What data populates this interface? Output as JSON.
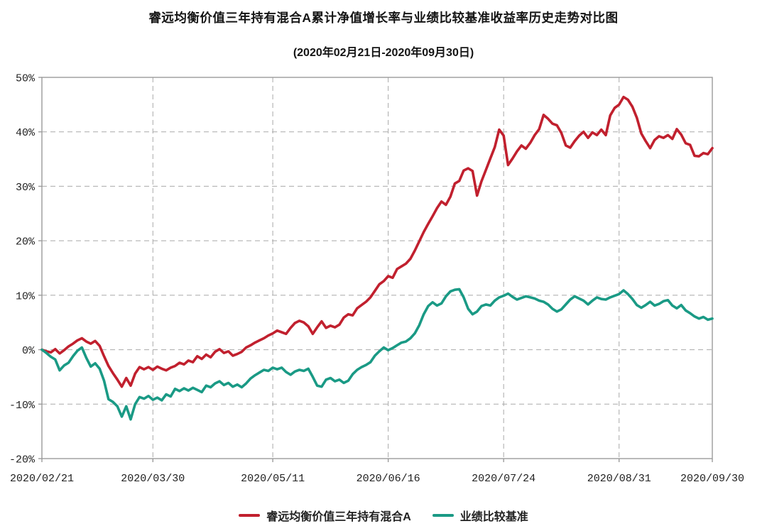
{
  "header": {
    "title": "睿远均衡价值三年持有混合A累计净值增长率与业绩比较基准收益率历史走势对比图",
    "subtitle": "(2020年02月21日-2020年09月30日)"
  },
  "chart_data": {
    "type": "line",
    "title": "睿远均衡价值三年持有混合A累计净值增长率与业绩比较基准收益率历史走势对比图",
    "subtitle": "(2020年02月21日-2020年09月30日)",
    "grid": "dashed",
    "legend_position": "bottom",
    "x_axis": {
      "tick_labels": [
        "2020/02/21",
        "2020/03/30",
        "2020/05/11",
        "2020/06/16",
        "2020/07/24",
        "2020/08/31",
        "2020/09/30"
      ],
      "tick_indices": [
        0,
        25,
        52,
        78,
        104,
        130,
        151
      ],
      "n_points": 152
    },
    "y_axis": {
      "unit": "%",
      "min": -20,
      "max": 50,
      "tick_values": [
        50,
        40,
        30,
        20,
        10,
        0,
        -10,
        -20
      ],
      "tick_labels": [
        "50%",
        "40%",
        "30%",
        "20%",
        "10%",
        "0%",
        "-10%",
        "-20%"
      ]
    },
    "series": [
      {
        "name": "睿远均衡价值三年持有混合A",
        "color": "#c1202e",
        "values": [
          0.0,
          -0.3,
          -0.5,
          0.1,
          -0.7,
          -0.1,
          0.6,
          1.1,
          1.7,
          2.1,
          1.5,
          1.1,
          1.6,
          0.7,
          -1.2,
          -3.0,
          -4.3,
          -5.5,
          -6.8,
          -5.2,
          -6.6,
          -4.4,
          -3.2,
          -3.6,
          -3.2,
          -3.7,
          -3.1,
          -3.5,
          -3.8,
          -3.3,
          -3.0,
          -2.4,
          -2.7,
          -2.0,
          -2.3,
          -1.2,
          -1.7,
          -0.9,
          -1.4,
          -0.4,
          0.1,
          -0.6,
          -0.3,
          -1.1,
          -0.8,
          -0.4,
          0.4,
          0.8,
          1.3,
          1.7,
          2.1,
          2.6,
          3.0,
          3.5,
          3.2,
          2.9,
          4.0,
          4.9,
          5.3,
          5.0,
          4.3,
          2.9,
          4.1,
          5.2,
          4.0,
          4.4,
          4.1,
          4.6,
          5.9,
          6.5,
          6.3,
          7.6,
          8.2,
          8.8,
          9.6,
          10.8,
          12.0,
          12.6,
          13.5,
          13.2,
          14.8,
          15.3,
          15.8,
          16.7,
          18.2,
          19.9,
          21.6,
          23.1,
          24.5,
          26.0,
          27.2,
          26.6,
          28.1,
          30.5,
          31.0,
          32.9,
          33.3,
          32.8,
          28.3,
          30.9,
          33.0,
          35.1,
          37.2,
          40.4,
          39.3,
          33.9,
          35.1,
          36.4,
          37.5,
          36.9,
          38.0,
          39.4,
          40.5,
          43.1,
          42.4,
          41.5,
          41.2,
          39.8,
          37.5,
          37.1,
          38.3,
          39.3,
          40.0,
          38.9,
          39.9,
          39.4,
          40.4,
          39.4,
          43.0,
          44.4,
          45.0,
          46.4,
          45.9,
          44.6,
          42.6,
          39.7,
          38.3,
          37.0,
          38.5,
          39.2,
          38.9,
          39.4,
          38.7,
          40.5,
          39.5,
          37.9,
          37.6,
          35.6,
          35.5,
          36.1,
          35.9,
          37.0
        ]
      },
      {
        "name": "业绩比较基准",
        "color": "#1a9a85",
        "values": [
          0.0,
          -0.6,
          -1.3,
          -1.8,
          -3.8,
          -2.9,
          -2.4,
          -1.2,
          -0.2,
          0.4,
          -1.5,
          -3.1,
          -2.5,
          -3.5,
          -5.7,
          -9.1,
          -9.6,
          -10.4,
          -12.3,
          -10.4,
          -12.8,
          -10.0,
          -8.7,
          -9.0,
          -8.5,
          -9.2,
          -8.8,
          -9.3,
          -8.2,
          -8.6,
          -7.2,
          -7.6,
          -7.1,
          -7.5,
          -7.0,
          -7.4,
          -7.8,
          -6.6,
          -6.9,
          -6.2,
          -5.8,
          -6.5,
          -6.1,
          -6.8,
          -6.4,
          -6.9,
          -6.2,
          -5.3,
          -4.7,
          -4.2,
          -3.7,
          -3.9,
          -3.3,
          -3.6,
          -3.3,
          -4.1,
          -4.6,
          -4.0,
          -3.7,
          -3.9,
          -3.5,
          -5.0,
          -6.6,
          -6.8,
          -5.5,
          -5.2,
          -5.8,
          -5.5,
          -6.1,
          -5.7,
          -4.5,
          -3.7,
          -3.2,
          -2.8,
          -2.3,
          -1.1,
          -0.3,
          0.4,
          -0.1,
          0.3,
          0.8,
          1.3,
          1.5,
          2.1,
          3.0,
          4.5,
          6.5,
          8.0,
          8.7,
          8.1,
          8.5,
          9.8,
          10.7,
          11.0,
          11.1,
          9.6,
          7.5,
          6.5,
          7.0,
          8.0,
          8.3,
          8.1,
          9.0,
          9.6,
          9.9,
          10.3,
          9.7,
          9.2,
          9.5,
          9.8,
          9.6,
          9.4,
          9.0,
          8.8,
          8.3,
          7.5,
          7.0,
          7.4,
          8.3,
          9.2,
          9.8,
          9.4,
          9.0,
          8.3,
          9.0,
          9.6,
          9.3,
          9.2,
          9.6,
          9.9,
          10.2,
          10.9,
          10.2,
          9.3,
          8.2,
          7.7,
          8.2,
          8.8,
          8.1,
          8.4,
          8.9,
          9.1,
          8.1,
          7.6,
          8.2,
          7.2,
          6.7,
          6.1,
          5.7,
          6.0,
          5.5,
          5.7
        ]
      }
    ]
  }
}
